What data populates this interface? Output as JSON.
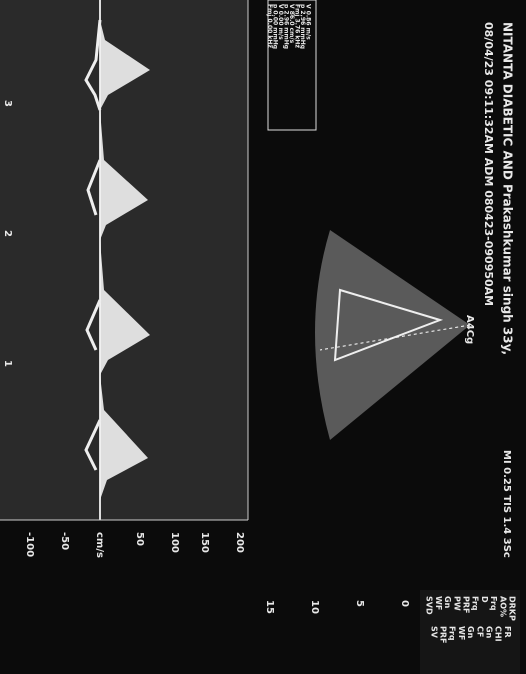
{
  "header": {
    "line1": "NITANTA DIABETIC AND Prakashkumar singh 33y,",
    "line2": "08/04/23 09:11:32AM  ADM  080423-090950AM",
    "acoustic": "MI 0.25   TIS 1.4  3Sc"
  },
  "measurements": [
    "V 0.86 m/s",
    "p 2.96 mmHg",
    "Fmj 3.76 kHz",
    "V 86.0 cm/s",
    "p 2.96 mmHg",
    "V 0.00 m/s",
    "p 0.00 mmHg",
    "Fmj 0.00 kHz"
  ],
  "view_label": "A4Cg",
  "doppler_scale": {
    "unit": "cm/s",
    "labels": [
      "-100",
      "-50",
      "50",
      "100",
      "150",
      "200"
    ]
  },
  "time_marks": [
    "1",
    "2",
    "3"
  ],
  "depth_scale": [
    "0",
    "5",
    "10",
    "15"
  ],
  "settings": [
    "DRKP",
    "FR",
    "AO%",
    "CHI",
    "Frq",
    "Gn",
    "D",
    "CF",
    "Frq",
    "Gn",
    "PRF",
    "WF",
    "PW",
    "Frq",
    "Gn",
    "PRF",
    "WF",
    "SV",
    "SVD"
  ]
}
